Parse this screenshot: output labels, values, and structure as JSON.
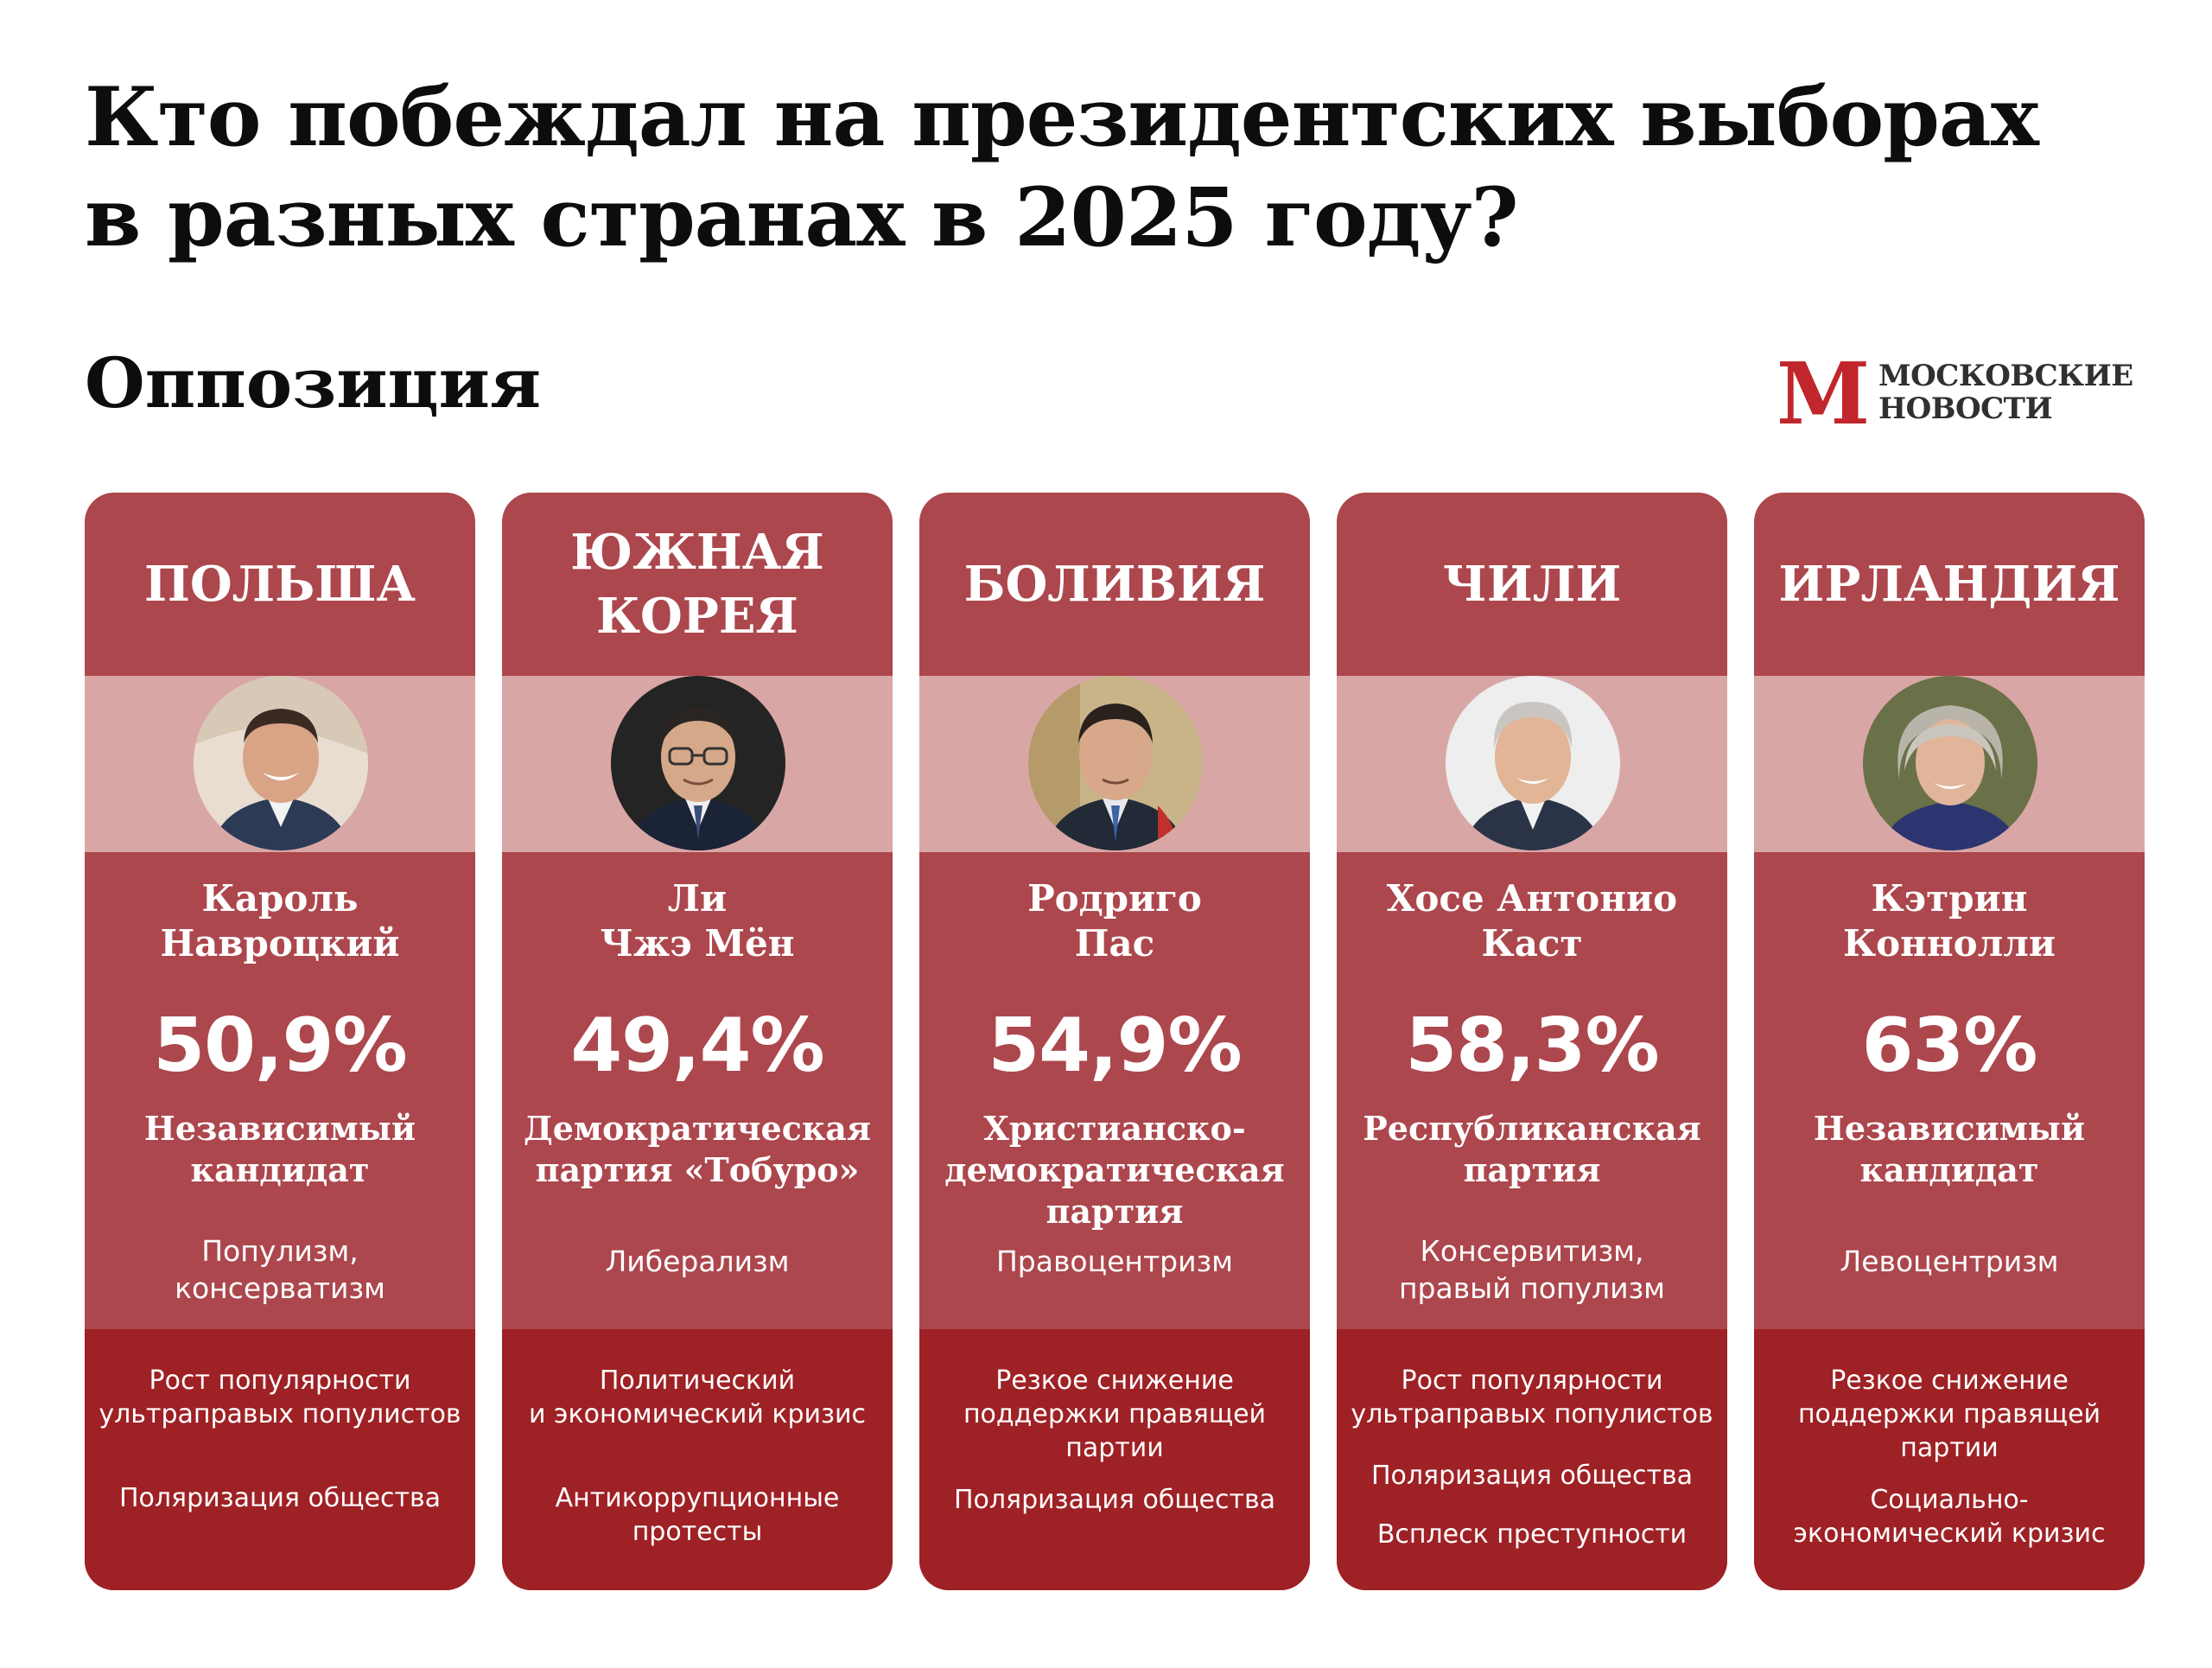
{
  "title": {
    "line1": "Кто побеждал на президентских выборах",
    "line2": "в разных странах в 2025 году?"
  },
  "subtitle": "Оппозиция",
  "logo": {
    "line1": "МОСКОВСКИЕ",
    "line2": "НОВОСТИ",
    "mark": "М"
  },
  "colors": {
    "header": "#ac474d",
    "photo_band": "#d9a6a6",
    "body": "#ac474d",
    "bottom": "#9e2125"
  },
  "countries": [
    {
      "country": "ПОЛЬША",
      "name": "Кароль\nНавроцкий",
      "percent": "50,9%",
      "party": "Независимый\nкандидат",
      "ideology": "Популизм,\nконсерватизм",
      "factors": [
        "Рост популярности\nультраправых популистов",
        "Поляризация общества"
      ],
      "photo": "portrait-man-smiling"
    },
    {
      "country": "ЮЖНАЯ\nКОРЕЯ",
      "name": "Ли\nЧжэ Мён",
      "percent": "49,4%",
      "party": "Демократическая\nпартия «Тобуро»",
      "ideology": "Либерализм",
      "factors": [
        "Политический\nи экономический кризис",
        "Антикоррупционные\nпротесты"
      ],
      "photo": "portrait-man-glasses"
    },
    {
      "country": "БОЛИВИЯ",
      "name": "Родриго\nПас",
      "percent": "54,9%",
      "party": "Христианско-\nдемократическая\nпартия",
      "ideology": "Правоцентризм",
      "factors": [
        "Резкое снижение\nподдержки правящей\nпартии",
        "Поляризация общества"
      ],
      "photo": "portrait-man-suit"
    },
    {
      "country": "ЧИЛИ",
      "name": "Хосе Антонио\nКаст",
      "percent": "58,3%",
      "party": "Республиканская\nпартия",
      "ideology": "Консервитизм,\nправый популизм",
      "factors": [
        "Рост популярности\nультраправых популистов",
        "Поляризация общества",
        "Всплеск преступности"
      ],
      "photo": "portrait-man-grey-hair"
    },
    {
      "country": "ИРЛАНДИЯ",
      "name": "Кэтрин\nКоннолли",
      "percent": "63%",
      "party": "Независимый\nкандидат",
      "ideology": "Левоцентризм",
      "factors": [
        "Резкое снижение\nподдержки правящей\nпартии",
        "Социально-\nэкономический кризис"
      ],
      "photo": "portrait-woman-grey-hair"
    }
  ]
}
